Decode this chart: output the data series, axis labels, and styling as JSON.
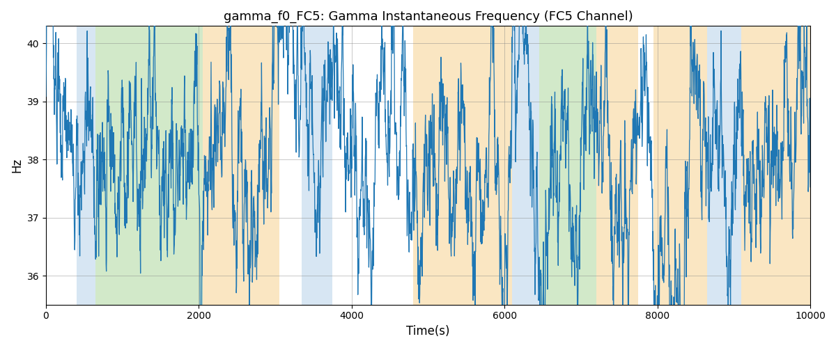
{
  "title": "gamma_f0_FC5: Gamma Instantaneous Frequency (FC5 Channel)",
  "xlabel": "Time(s)",
  "ylabel": "Hz",
  "xlim": [
    0,
    10000
  ],
  "ylim": [
    35.5,
    40.3
  ],
  "yticks": [
    36,
    37,
    38,
    39,
    40
  ],
  "xticks": [
    0,
    2000,
    4000,
    6000,
    8000,
    10000
  ],
  "line_color": "#1f77b4",
  "line_width": 0.9,
  "bg_regions": [
    {
      "xmin": 0,
      "xmax": 400,
      "color": "#ffffff",
      "alpha": 1.0
    },
    {
      "xmin": 400,
      "xmax": 650,
      "color": "#b0cfe8",
      "alpha": 0.5
    },
    {
      "xmin": 650,
      "xmax": 2050,
      "color": "#90c878",
      "alpha": 0.4
    },
    {
      "xmin": 2050,
      "xmax": 3050,
      "color": "#f5c878",
      "alpha": 0.45
    },
    {
      "xmin": 3050,
      "xmax": 3350,
      "color": "#ffffff",
      "alpha": 1.0
    },
    {
      "xmin": 3350,
      "xmax": 3750,
      "color": "#b0cfe8",
      "alpha": 0.5
    },
    {
      "xmin": 3750,
      "xmax": 4800,
      "color": "#ffffff",
      "alpha": 1.0
    },
    {
      "xmin": 4800,
      "xmax": 6100,
      "color": "#f5c878",
      "alpha": 0.45
    },
    {
      "xmin": 6100,
      "xmax": 6450,
      "color": "#b0cfe8",
      "alpha": 0.5
    },
    {
      "xmin": 6450,
      "xmax": 7200,
      "color": "#90c878",
      "alpha": 0.4
    },
    {
      "xmin": 7200,
      "xmax": 7750,
      "color": "#f5c878",
      "alpha": 0.45
    },
    {
      "xmin": 7750,
      "xmax": 7950,
      "color": "#ffffff",
      "alpha": 1.0
    },
    {
      "xmin": 7950,
      "xmax": 8650,
      "color": "#f5c878",
      "alpha": 0.45
    },
    {
      "xmin": 8650,
      "xmax": 9100,
      "color": "#b0cfe8",
      "alpha": 0.5
    },
    {
      "xmin": 9100,
      "xmax": 10000,
      "color": "#f5c878",
      "alpha": 0.45
    }
  ],
  "seed": 137,
  "n_points": 3000
}
